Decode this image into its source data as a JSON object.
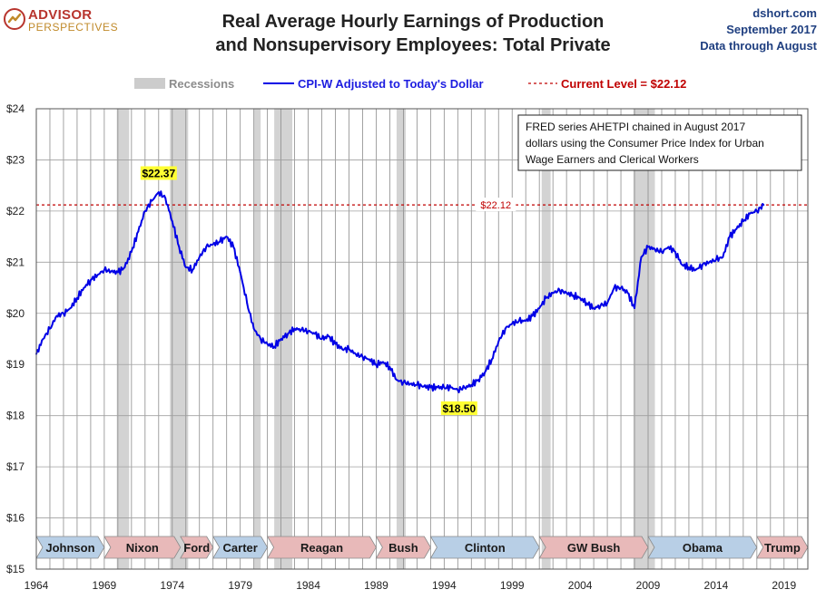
{
  "header": {
    "logo_top": "ADVISOR",
    "logo_bottom": "PERSPECTIVES",
    "title_line1": "Real Average Hourly Earnings of Production",
    "title_line2": "and Nonsupervisory Employees: Total Private",
    "source_site": "dshort.com",
    "source_date": "September 2017",
    "source_note": "Data through August"
  },
  "chart_data": {
    "type": "line",
    "legend": {
      "recessions": "Recessions",
      "series": "CPI-W Adjusted to Today's Dollar",
      "current": "Current Level = $22.12"
    },
    "note": [
      "FRED series AHETPI chained in August 2017",
      "dollars using the Consumer Price Index for Urban",
      "Wage Earners and Clerical Workers"
    ],
    "y_ticks": [
      "$15",
      "$16",
      "$17",
      "$18",
      "$19",
      "$20",
      "$21",
      "$22",
      "$23",
      "$24"
    ],
    "x_ticks": [
      "1964",
      "1969",
      "1974",
      "1979",
      "1984",
      "1989",
      "1994",
      "1999",
      "2004",
      "2009",
      "2014",
      "2019"
    ],
    "xlim": [
      1964,
      2020.75
    ],
    "ylim": [
      15,
      24
    ],
    "current_level": 22.12,
    "current_label": "$22.12",
    "peak": {
      "x": 1973.0,
      "y": 22.37,
      "label": "$22.37"
    },
    "trough": {
      "x": 1995.1,
      "y": 18.5,
      "label": "$18.50"
    },
    "recessions": [
      [
        1969.92,
        1970.83
      ],
      [
        1973.83,
        1975.17
      ],
      [
        1980.0,
        1980.5
      ],
      [
        1981.5,
        1982.83
      ],
      [
        1990.5,
        1991.17
      ],
      [
        2001.17,
        2001.83
      ],
      [
        2007.92,
        2009.5
      ]
    ],
    "presidents": [
      {
        "name": "Johnson",
        "start": 1964.0,
        "end": 1969.0,
        "party": "D"
      },
      {
        "name": "Nixon",
        "start": 1969.0,
        "end": 1974.6,
        "party": "R"
      },
      {
        "name": "Ford",
        "start": 1974.6,
        "end": 1977.0,
        "party": "R"
      },
      {
        "name": "Carter",
        "start": 1977.0,
        "end": 1981.0,
        "party": "D"
      },
      {
        "name": "Reagan",
        "start": 1981.0,
        "end": 1989.0,
        "party": "R"
      },
      {
        "name": "Bush",
        "start": 1989.0,
        "end": 1993.0,
        "party": "R"
      },
      {
        "name": "Clinton",
        "start": 1993.0,
        "end": 2001.0,
        "party": "D"
      },
      {
        "name": "GW Bush",
        "start": 2001.0,
        "end": 2009.0,
        "party": "R"
      },
      {
        "name": "Obama",
        "start": 2009.0,
        "end": 2017.0,
        "party": "D"
      },
      {
        "name": "Trump",
        "start": 2017.0,
        "end": 2020.75,
        "party": "R"
      }
    ],
    "series": [
      {
        "x": [
          1964.0,
          1964.5,
          1965.0,
          1965.5,
          1966.0,
          1966.5,
          1967.0,
          1967.5,
          1968.0,
          1968.5,
          1969.0,
          1969.5,
          1970.0,
          1970.5,
          1971.0,
          1971.5,
          1972.0,
          1972.5,
          1973.0,
          1973.5,
          1974.0,
          1974.5,
          1975.0,
          1975.5,
          1976.0,
          1976.5,
          1977.0,
          1977.5,
          1978.0,
          1978.5,
          1979.0,
          1979.5,
          1980.0,
          1980.5,
          1981.0,
          1981.5,
          1982.0,
          1982.5,
          1983.0,
          1983.5,
          1984.0,
          1984.5,
          1985.0,
          1985.5,
          1986.0,
          1986.5,
          1987.0,
          1987.5,
          1988.0,
          1988.5,
          1989.0,
          1989.5,
          1990.0,
          1990.5,
          1991.0,
          1991.5,
          1992.0,
          1992.5,
          1993.0,
          1993.5,
          1994.0,
          1994.5,
          1995.0,
          1995.5,
          1996.0,
          1996.5,
          1997.0,
          1997.5,
          1998.0,
          1998.5,
          1999.0,
          1999.5,
          2000.0,
          2000.5,
          2001.0,
          2001.5,
          2002.0,
          2002.5,
          2003.0,
          2003.5,
          2004.0,
          2004.5,
          2005.0,
          2005.5,
          2006.0,
          2006.5,
          2007.0,
          2007.5,
          2008.0,
          2008.5,
          2009.0,
          2009.5,
          2010.0,
          2010.5,
          2011.0,
          2011.5,
          2012.0,
          2012.5,
          2013.0,
          2013.5,
          2014.0,
          2014.5,
          2015.0,
          2015.5,
          2016.0,
          2016.5,
          2017.0,
          2017.5
        ],
        "y": [
          19.2,
          19.5,
          19.7,
          19.95,
          20.0,
          20.1,
          20.3,
          20.5,
          20.65,
          20.75,
          20.85,
          20.82,
          20.8,
          20.9,
          21.2,
          21.6,
          22.0,
          22.2,
          22.37,
          22.25,
          21.8,
          21.3,
          20.9,
          20.85,
          21.1,
          21.3,
          21.35,
          21.4,
          21.5,
          21.3,
          20.8,
          20.2,
          19.7,
          19.5,
          19.4,
          19.35,
          19.5,
          19.6,
          19.7,
          19.68,
          19.65,
          19.6,
          19.5,
          19.55,
          19.4,
          19.3,
          19.3,
          19.2,
          19.15,
          19.1,
          19.0,
          19.05,
          18.95,
          18.7,
          18.65,
          18.62,
          18.6,
          18.57,
          18.55,
          18.55,
          18.55,
          18.55,
          18.5,
          18.55,
          18.6,
          18.7,
          18.85,
          19.1,
          19.45,
          19.7,
          19.8,
          19.85,
          19.85,
          19.95,
          20.1,
          20.3,
          20.4,
          20.45,
          20.4,
          20.35,
          20.3,
          20.2,
          20.1,
          20.15,
          20.2,
          20.5,
          20.5,
          20.4,
          20.1,
          21.1,
          21.3,
          21.25,
          21.2,
          21.3,
          21.2,
          20.95,
          20.9,
          20.85,
          20.95,
          21.0,
          21.05,
          21.1,
          21.5,
          21.65,
          21.8,
          21.95,
          22.0,
          22.12
        ]
      }
    ]
  }
}
